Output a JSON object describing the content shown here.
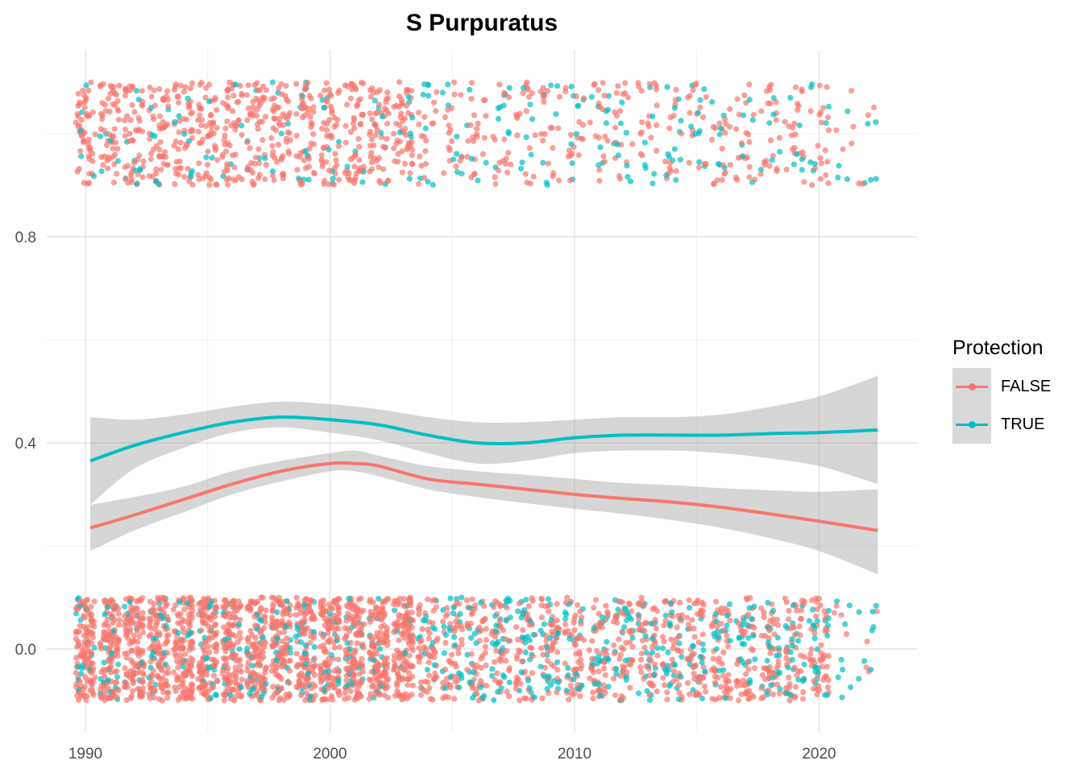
{
  "chart_data": {
    "type": "scatter",
    "title": "S Purpuratus",
    "xlabel": "",
    "ylabel": "",
    "xlim": [
      1989.5,
      2023.8
    ],
    "ylim": [
      -0.16,
      1.16
    ],
    "x_ticks": [
      1990,
      2000,
      2010,
      2020
    ],
    "x_tick_labels": [
      "1990",
      "2000",
      "2010",
      "2020"
    ],
    "y_ticks": [
      0.0,
      0.4,
      0.8
    ],
    "y_tick_labels": [
      "0.0",
      "0.4",
      "0.8"
    ],
    "grid": true,
    "legend": {
      "title": "Protection",
      "position": "right"
    },
    "jitter": {
      "x": 0.4,
      "y": 0.1
    },
    "series": [
      {
        "name": "FALSE",
        "color": "#F8766D",
        "points_description": "jittered binary outcomes (0 and 1) per year, 1990–2022",
        "smooth": {
          "x": [
            1990.2,
            1992,
            1994,
            1996,
            1998,
            2000,
            2001,
            2002,
            2004,
            2006,
            2008,
            2010,
            2012,
            2014,
            2016,
            2018,
            2020,
            2022.4
          ],
          "y": [
            0.235,
            0.26,
            0.29,
            0.32,
            0.345,
            0.36,
            0.36,
            0.355,
            0.33,
            0.32,
            0.31,
            0.3,
            0.292,
            0.285,
            0.275,
            0.262,
            0.248,
            0.23
          ],
          "lower": [
            0.19,
            0.23,
            0.265,
            0.3,
            0.325,
            0.345,
            0.345,
            0.335,
            0.31,
            0.295,
            0.283,
            0.272,
            0.262,
            0.25,
            0.235,
            0.215,
            0.19,
            0.145
          ],
          "upper": [
            0.28,
            0.295,
            0.315,
            0.345,
            0.365,
            0.38,
            0.385,
            0.375,
            0.355,
            0.345,
            0.338,
            0.33,
            0.322,
            0.318,
            0.312,
            0.308,
            0.305,
            0.31
          ]
        }
      },
      {
        "name": "TRUE",
        "color": "#00BFC4",
        "points_description": "jittered binary outcomes (0 and 1) per year, 1990–2022",
        "smooth": {
          "x": [
            1990.2,
            1992,
            1994,
            1996,
            1998,
            2000,
            2002,
            2004,
            2006,
            2008,
            2010,
            2012,
            2014,
            2016,
            2018,
            2020,
            2022.4
          ],
          "y": [
            0.365,
            0.395,
            0.42,
            0.44,
            0.45,
            0.445,
            0.435,
            0.415,
            0.4,
            0.4,
            0.41,
            0.415,
            0.415,
            0.415,
            0.418,
            0.42,
            0.425
          ],
          "lower": [
            0.28,
            0.35,
            0.39,
            0.42,
            0.43,
            0.42,
            0.405,
            0.38,
            0.36,
            0.365,
            0.38,
            0.385,
            0.385,
            0.38,
            0.37,
            0.355,
            0.32
          ],
          "upper": [
            0.45,
            0.445,
            0.455,
            0.47,
            0.48,
            0.475,
            0.465,
            0.45,
            0.44,
            0.44,
            0.445,
            0.45,
            0.45,
            0.455,
            0.47,
            0.49,
            0.53
          ]
        }
      }
    ]
  }
}
